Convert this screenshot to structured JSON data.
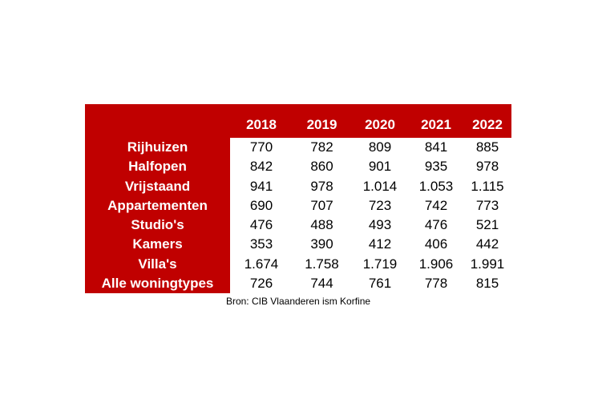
{
  "table": {
    "columns": [
      "2018",
      "2019",
      "2020",
      "2021",
      "2022"
    ],
    "rows": [
      {
        "label": "Rijhuizen",
        "values": [
          "770",
          "782",
          "809",
          "841",
          "885"
        ]
      },
      {
        "label": "Halfopen",
        "values": [
          "842",
          "860",
          "901",
          "935",
          "978"
        ]
      },
      {
        "label": "Vrijstaand",
        "values": [
          "941",
          "978",
          "1.014",
          "1.053",
          "1.115"
        ]
      },
      {
        "label": "Appartementen",
        "values": [
          "690",
          "707",
          "723",
          "742",
          "773"
        ]
      },
      {
        "label": "Studio's",
        "values": [
          "476",
          "488",
          "493",
          "476",
          "521"
        ]
      },
      {
        "label": "Kamers",
        "values": [
          "353",
          "390",
          "412",
          "406",
          "442"
        ]
      },
      {
        "label": "Villa's",
        "values": [
          "1.674",
          "1.758",
          "1.719",
          "1.906",
          "1.991"
        ]
      },
      {
        "label": "Alle woningtypes",
        "values": [
          "726",
          "744",
          "761",
          "778",
          "815"
        ]
      }
    ],
    "source": "Bron: CIB Vlaanderen ism Korfine"
  }
}
